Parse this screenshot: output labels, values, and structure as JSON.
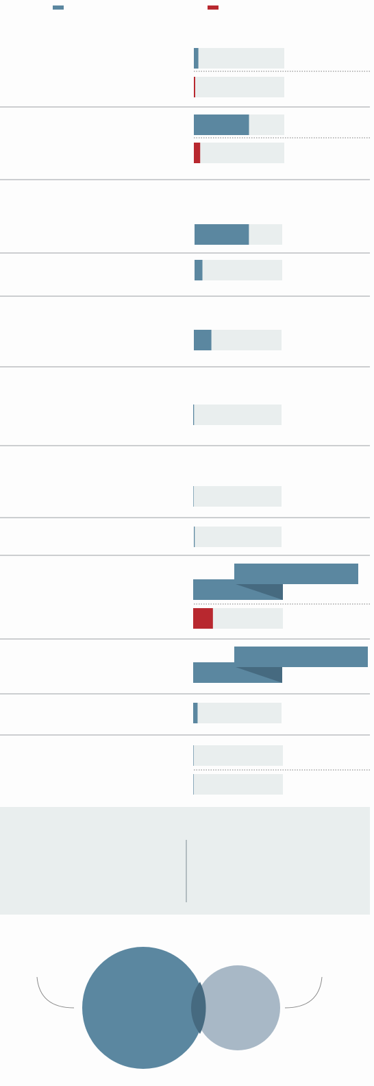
{
  "legend": {
    "colors": [
      "#5b87a0",
      "#b8282f"
    ]
  },
  "groups": [
    {
      "bars": [
        {
          "color": "#5b87a0",
          "value": 5
        },
        {
          "color": "#b8282f",
          "value": 1.5
        }
      ]
    },
    {
      "bars": [
        {
          "color": "#5b87a0",
          "value": 61
        },
        {
          "color": "#b8282f",
          "value": 7
        }
      ]
    },
    {
      "bars": [
        {
          "color": "#5b87a0",
          "value": 62
        }
      ]
    },
    {
      "bars": [
        {
          "color": "#5b87a0",
          "value": 9
        }
      ]
    },
    {
      "bars": [
        {
          "color": "#5b87a0",
          "value": 20
        }
      ]
    },
    {
      "bars": [
        {
          "color": "#5b87a0",
          "value": 1
        }
      ]
    },
    {
      "bars": [
        {
          "color": "#5b87a0",
          "value": 0.5
        }
      ]
    },
    {
      "bars": [
        {
          "color": "#5b87a0",
          "value": 1
        }
      ]
    },
    {
      "bars": [
        {
          "color": "#5b87a0",
          "value": 100
        },
        {
          "color": "#b8282f",
          "value": 22
        }
      ]
    },
    {
      "bars": [
        {
          "color": "#5b87a0",
          "value": 100
        }
      ]
    },
    {
      "bars": [
        {
          "color": "#5b87a0",
          "value": 5
        }
      ]
    },
    {
      "bars": [
        {
          "color": "#5b87a0",
          "value": 0.5
        },
        {
          "color": "#5b87a0",
          "value": 0.5
        }
      ]
    }
  ]
}
